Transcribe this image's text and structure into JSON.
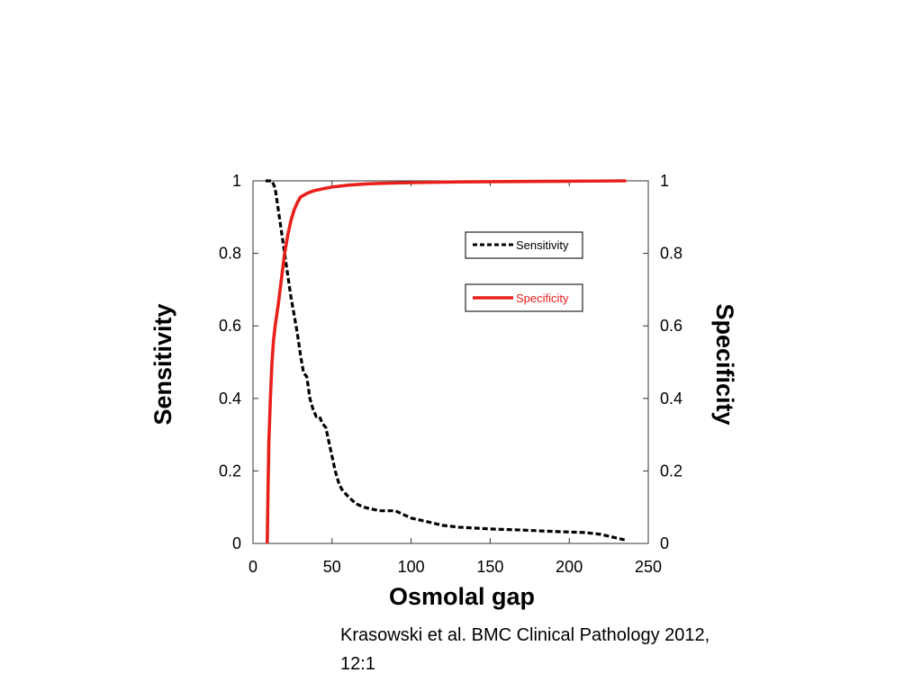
{
  "chart_data": {
    "type": "line",
    "xlabel": "Osmolal gap",
    "ylabel_left": "Sensitivity",
    "ylabel_right": "Specificity",
    "xlim": [
      0,
      250
    ],
    "ylim": [
      0,
      1
    ],
    "x_ticks": [
      "0",
      "50",
      "100",
      "150",
      "200",
      "250"
    ],
    "y_ticks": [
      "0",
      "0.2",
      "0.4",
      "0.6",
      "0.8",
      "1"
    ],
    "grid": false,
    "legend_placement": "top-right",
    "series": [
      {
        "name": "Sensitivity",
        "style": "dashed",
        "color": "#000000",
        "x": [
          8,
          12,
          14,
          16,
          18,
          20,
          22,
          24,
          26,
          28,
          30,
          32,
          34,
          36,
          38,
          40,
          42,
          44,
          46,
          48,
          50,
          52,
          54,
          56,
          58,
          60,
          65,
          70,
          80,
          90,
          95,
          100,
          110,
          120,
          130,
          150,
          170,
          190,
          210,
          220,
          230,
          235
        ],
        "y": [
          1.0,
          1.0,
          0.98,
          0.92,
          0.86,
          0.8,
          0.74,
          0.68,
          0.63,
          0.58,
          0.52,
          0.47,
          0.46,
          0.4,
          0.37,
          0.35,
          0.35,
          0.33,
          0.32,
          0.28,
          0.24,
          0.2,
          0.17,
          0.15,
          0.14,
          0.13,
          0.11,
          0.1,
          0.09,
          0.09,
          0.08,
          0.07,
          0.06,
          0.05,
          0.045,
          0.04,
          0.037,
          0.033,
          0.03,
          0.025,
          0.015,
          0.01
        ]
      },
      {
        "name": "Specificity",
        "style": "solid",
        "color": "#e8201c",
        "x": [
          9,
          9.5,
          10,
          11,
          12,
          13,
          14,
          16,
          18,
          20,
          22,
          24,
          26,
          28,
          30,
          34,
          38,
          44,
          50,
          60,
          70,
          80,
          100,
          130,
          160,
          200,
          236
        ],
        "y": [
          0.0,
          0.15,
          0.28,
          0.4,
          0.5,
          0.56,
          0.6,
          0.66,
          0.73,
          0.8,
          0.85,
          0.89,
          0.92,
          0.94,
          0.955,
          0.965,
          0.972,
          0.978,
          0.983,
          0.988,
          0.991,
          0.993,
          0.995,
          0.997,
          0.998,
          0.999,
          1.0
        ]
      }
    ]
  },
  "legend": {
    "sensitivity_label": "Sensitivity",
    "specificity_label": "Specificity"
  },
  "citation": {
    "line1": "Krasowski et al. BMC Clinical Pathology 2012,",
    "line2": "12:1"
  }
}
